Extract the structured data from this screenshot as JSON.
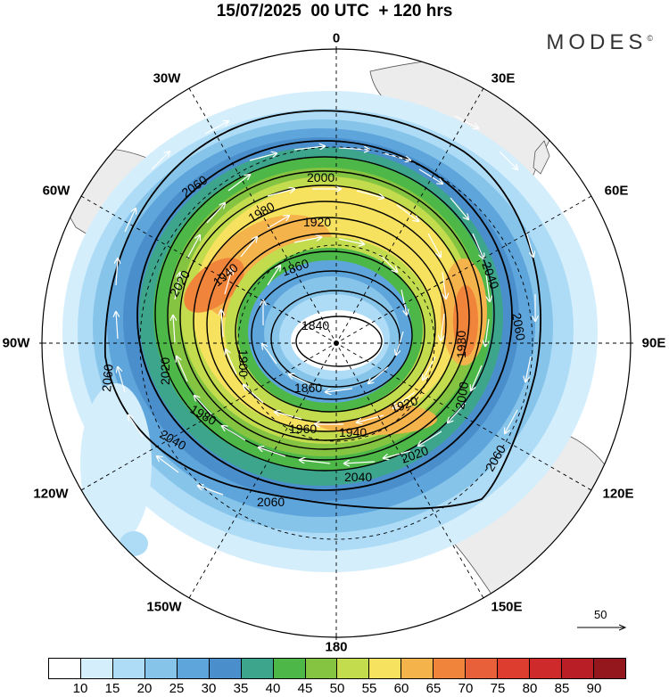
{
  "title": "15/07/2025  00 UTC  + 120 hrs",
  "brand": "MODES",
  "brand_mark": "©",
  "longitude_labels": [
    {
      "id": "lon-0",
      "text": "0"
    },
    {
      "id": "lon-30e",
      "text": "30E"
    },
    {
      "id": "lon-60e",
      "text": "60E"
    },
    {
      "id": "lon-90e",
      "text": "90E"
    },
    {
      "id": "lon-120e",
      "text": "120E"
    },
    {
      "id": "lon-150e",
      "text": "150E"
    },
    {
      "id": "lon-180",
      "text": "180"
    },
    {
      "id": "lon-150w",
      "text": "150W"
    },
    {
      "id": "lon-120w",
      "text": "120W"
    },
    {
      "id": "lon-90w",
      "text": "90W"
    },
    {
      "id": "lon-60w",
      "text": "60W"
    },
    {
      "id": "lon-30w",
      "text": "30W"
    }
  ],
  "contour_labels": [
    "1840",
    "1860",
    "1880",
    "1900",
    "1920",
    "1940",
    "1960",
    "1980",
    "2000",
    "2020",
    "2040",
    "2060"
  ],
  "colorbar": {
    "colors": [
      "#ffffff",
      "#d4eefc",
      "#aedcf7",
      "#86c4ea",
      "#5ea5dc",
      "#4a8fcc",
      "#3ea58d",
      "#4db848",
      "#84c440",
      "#c3dc4e",
      "#f7e260",
      "#f5b34c",
      "#f0843a",
      "#e8603a",
      "#dc3d2e",
      "#cf2a2b",
      "#b91e27",
      "#93171d"
    ],
    "labels": [
      "10",
      "15",
      "20",
      "25",
      "30",
      "35",
      "40",
      "45",
      "50",
      "55",
      "60",
      "65",
      "70",
      "75",
      "80",
      "85",
      "90"
    ]
  },
  "reference_vector": {
    "label": "50"
  },
  "map_colors": {
    "land": "#ececec",
    "coast": "#444444",
    "grid": "#000000",
    "contour": "#000000",
    "wind_vector": "#ffffff"
  }
}
